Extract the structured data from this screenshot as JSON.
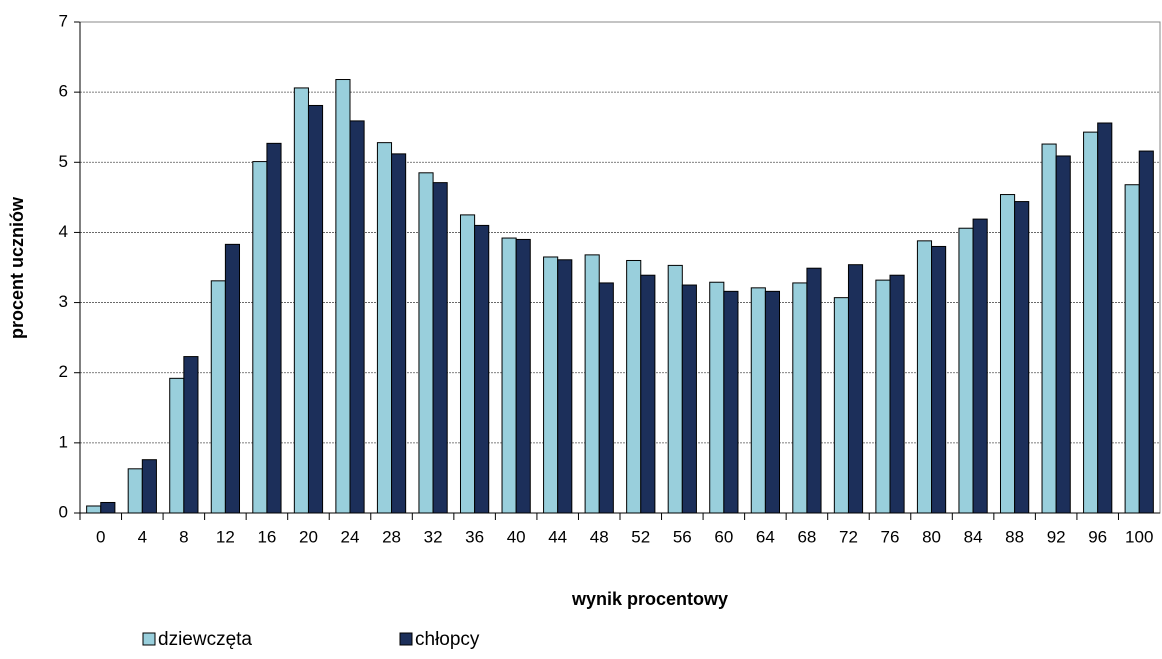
{
  "chart_data": {
    "type": "bar",
    "x_label": "wynik procentowy",
    "y_label": "procent uczniów",
    "categories": [
      "0",
      "4",
      "8",
      "12",
      "16",
      "20",
      "24",
      "28",
      "32",
      "36",
      "40",
      "44",
      "48",
      "52",
      "56",
      "60",
      "64",
      "68",
      "72",
      "76",
      "80",
      "84",
      "88",
      "92",
      "96",
      "100"
    ],
    "series": [
      {
        "name": "dziewczęta",
        "color": "#99cfdc",
        "values": [
          0.1,
          0.63,
          1.92,
          3.31,
          5.01,
          6.06,
          6.18,
          5.28,
          4.85,
          4.25,
          3.92,
          3.65,
          3.68,
          3.6,
          3.53,
          3.29,
          3.21,
          3.28,
          3.07,
          3.32,
          3.88,
          4.06,
          4.54,
          5.26,
          5.43,
          4.68
        ]
      },
      {
        "name": "chłopcy",
        "color": "#1c2f5a",
        "values": [
          0.15,
          0.76,
          2.23,
          3.83,
          5.27,
          5.81,
          5.59,
          5.12,
          4.71,
          4.1,
          3.9,
          3.61,
          3.28,
          3.39,
          3.25,
          3.16,
          3.16,
          3.49,
          3.54,
          3.39,
          3.8,
          4.19,
          4.44,
          5.09,
          5.56,
          5.16
        ]
      }
    ],
    "ylim": [
      0,
      7
    ],
    "yticks": [
      0,
      1,
      2,
      3,
      4,
      5,
      6,
      7
    ],
    "grid": true
  }
}
